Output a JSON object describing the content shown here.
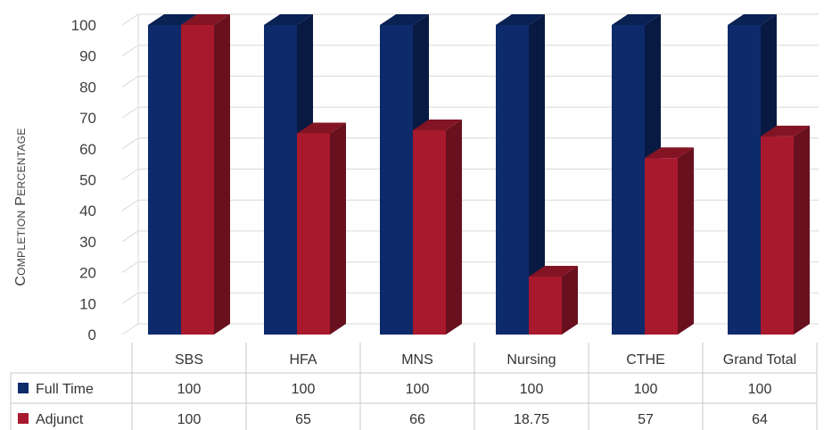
{
  "chart_data": {
    "type": "bar",
    "title": "",
    "ylabel": "Completion Percentage",
    "xlabel": "",
    "ylim": [
      0,
      100
    ],
    "yticks": [
      0,
      10,
      20,
      30,
      40,
      50,
      60,
      70,
      80,
      90,
      100
    ],
    "grid": true,
    "legend_position": "data-table-left",
    "categories": [
      "SBS",
      "HFA",
      "MNS",
      "Nursing",
      "CTHE",
      "Grand Total"
    ],
    "series": [
      {
        "name": "Full Time",
        "color": "#0d2a6b",
        "values": [
          100,
          100,
          100,
          100,
          100,
          100
        ],
        "labels": [
          "100",
          "100",
          "100",
          "100",
          "100",
          "100"
        ]
      },
      {
        "name": "Adjunct",
        "color": "#a8192e",
        "values": [
          100,
          65,
          66,
          18.75,
          57,
          64
        ],
        "labels": [
          "100",
          "65",
          "66",
          "18.75",
          "57",
          "64"
        ]
      }
    ]
  }
}
